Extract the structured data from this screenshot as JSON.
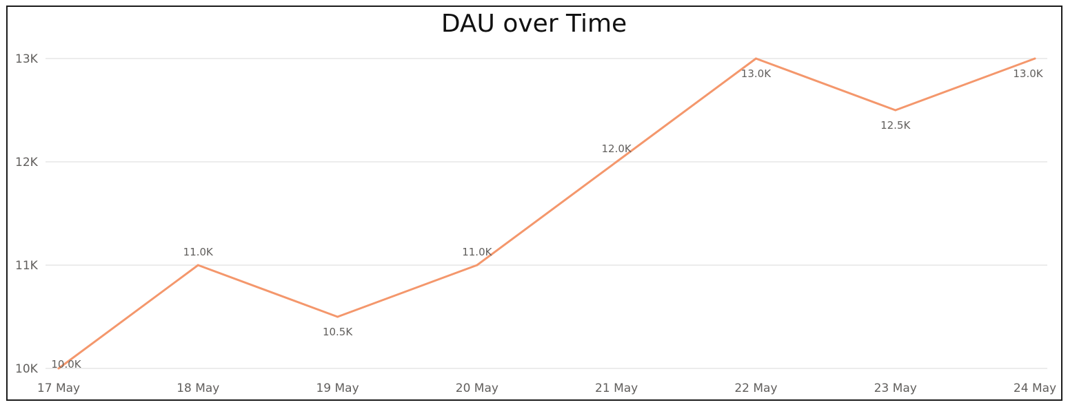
{
  "chart_data": {
    "type": "line",
    "title": "DAU over Time",
    "xlabel": "",
    "ylabel": "",
    "categories": [
      "17 May",
      "18 May",
      "19 May",
      "20 May",
      "21 May",
      "22 May",
      "23 May",
      "24 May"
    ],
    "series": [
      {
        "values": [
          10000,
          11000,
          10500,
          11000,
          12000,
          13000,
          12500,
          13000
        ],
        "data_labels": [
          "10.0K",
          "11.0K",
          "10.5K",
          "11.0K",
          "12.0K",
          "13.0K",
          "12.5K",
          "13.0K"
        ],
        "color": "#f4976c"
      }
    ],
    "ylim": [
      10000,
      13000
    ],
    "yticks": [
      10000,
      11000,
      12000,
      13000
    ],
    "ytick_labels": [
      "10K",
      "11K",
      "12K",
      "13K"
    ],
    "grid": true,
    "gridline_color": "#e6e6e6"
  }
}
